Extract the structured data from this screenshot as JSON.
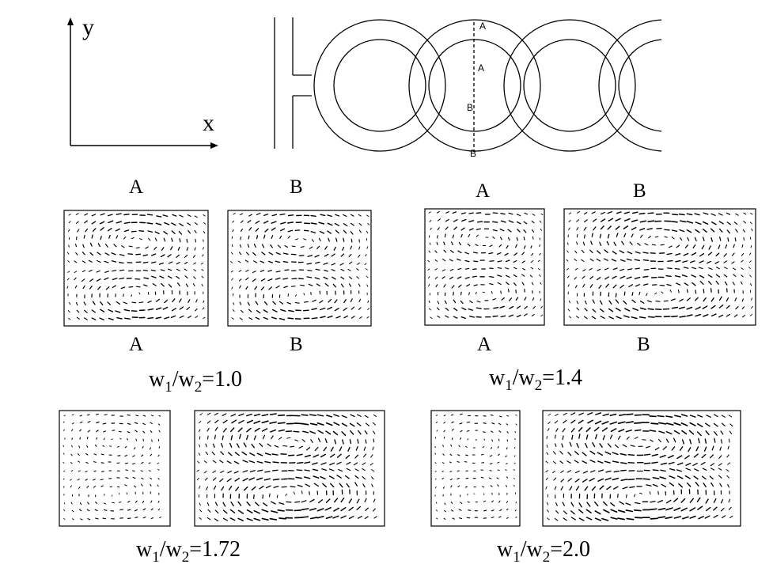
{
  "axes": {
    "y_label": "y",
    "x_label": "x"
  },
  "channel": {
    "cut_labels": [
      "A",
      "A",
      "B",
      "B"
    ],
    "ring_count": 4
  },
  "panels": [
    {
      "id": "p1",
      "label_a": "A",
      "label_b": "B",
      "bottom_label_a": "A",
      "bottom_label_b": "B",
      "caption": {
        "base1": "w",
        "sub1": "1",
        "mid": "/w",
        "sub2": "2",
        "tail": "=1.0"
      },
      "ratio": 1.0
    },
    {
      "id": "p2",
      "label_a": "A",
      "label_b": "B",
      "bottom_label_a": "A",
      "bottom_label_b": "B",
      "caption": {
        "base1": "w",
        "sub1": "1",
        "mid": "/w",
        "sub2": "2",
        "tail": "=1.4"
      },
      "ratio": 1.4
    },
    {
      "id": "p3",
      "caption": {
        "base1": "w",
        "sub1": "1",
        "mid": "/w",
        "sub2": "2",
        "tail": "=1.72"
      },
      "ratio": 1.72
    },
    {
      "id": "p4",
      "caption": {
        "base1": "w",
        "sub1": "1",
        "mid": "/w",
        "sub2": "2",
        "tail": "=2.0"
      },
      "ratio": 2.0
    }
  ]
}
